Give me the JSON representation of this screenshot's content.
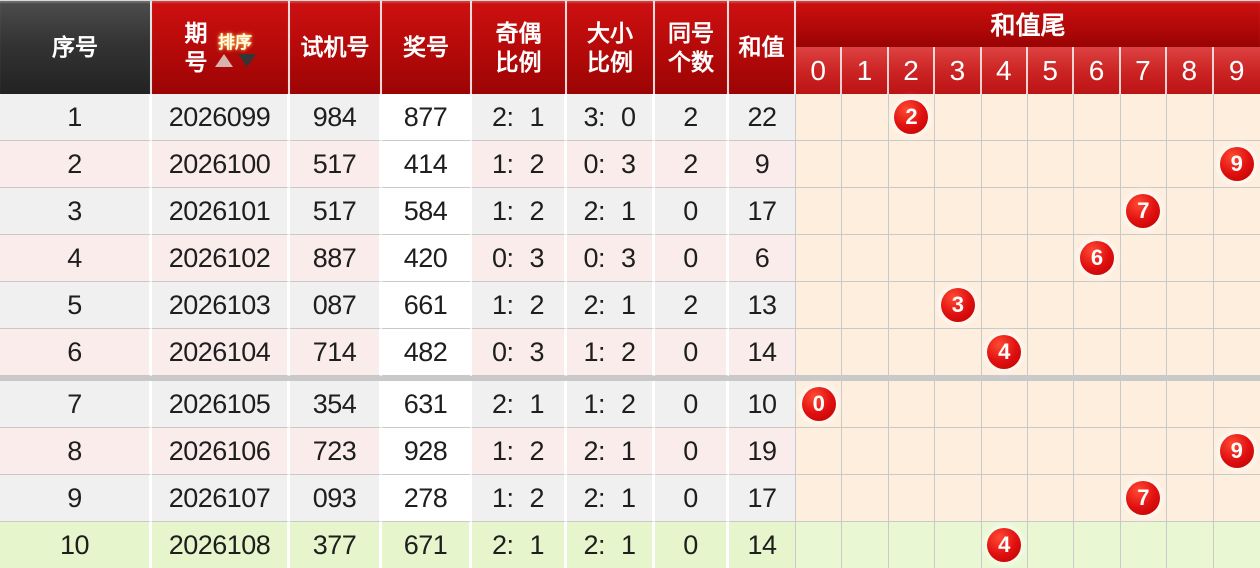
{
  "header": {
    "serial": "序号",
    "period_lines": [
      "期",
      "号"
    ],
    "sort_label": "排序",
    "test_number": "试机号",
    "prize_number": "奖号",
    "odd_even_lines": [
      "奇偶",
      "比例"
    ],
    "big_small_lines": [
      "大小",
      "比例"
    ],
    "same_count_lines": [
      "同号",
      "个数"
    ],
    "sum": "和值",
    "sum_tail": "和值尾",
    "tail_digits": [
      "0",
      "1",
      "2",
      "3",
      "4",
      "5",
      "6",
      "7",
      "8",
      "9"
    ]
  },
  "group_divider_after": 6,
  "rows": [
    {
      "index": "1",
      "period": "2026099",
      "test": "984",
      "prize": "877",
      "odd_even": "2: 1",
      "big_small": "3: 0",
      "same_count": "2",
      "sum": "22",
      "tail": 2
    },
    {
      "index": "2",
      "period": "2026100",
      "test": "517",
      "prize": "414",
      "odd_even": "1: 2",
      "big_small": "0: 3",
      "same_count": "2",
      "sum": "9",
      "tail": 9
    },
    {
      "index": "3",
      "period": "2026101",
      "test": "517",
      "prize": "584",
      "odd_even": "1: 2",
      "big_small": "2: 1",
      "same_count": "0",
      "sum": "17",
      "tail": 7
    },
    {
      "index": "4",
      "period": "2026102",
      "test": "887",
      "prize": "420",
      "odd_even": "0: 3",
      "big_small": "0: 3",
      "same_count": "0",
      "sum": "6",
      "tail": 6
    },
    {
      "index": "5",
      "period": "2026103",
      "test": "087",
      "prize": "661",
      "odd_even": "1: 2",
      "big_small": "2: 1",
      "same_count": "2",
      "sum": "13",
      "tail": 3
    },
    {
      "index": "6",
      "period": "2026104",
      "test": "714",
      "prize": "482",
      "odd_even": "0: 3",
      "big_small": "1: 2",
      "same_count": "0",
      "sum": "14",
      "tail": 4
    },
    {
      "index": "7",
      "period": "2026105",
      "test": "354",
      "prize": "631",
      "odd_even": "2: 1",
      "big_small": "1: 2",
      "same_count": "0",
      "sum": "10",
      "tail": 0
    },
    {
      "index": "8",
      "period": "2026106",
      "test": "723",
      "prize": "928",
      "odd_even": "1: 2",
      "big_small": "2: 1",
      "same_count": "0",
      "sum": "19",
      "tail": 9
    },
    {
      "index": "9",
      "period": "2026107",
      "test": "093",
      "prize": "278",
      "odd_even": "1: 2",
      "big_small": "2: 1",
      "same_count": "0",
      "sum": "17",
      "tail": 7
    },
    {
      "index": "10",
      "period": "2026108",
      "test": "377",
      "prize": "671",
      "odd_even": "2: 1",
      "big_small": "2: 1",
      "same_count": "0",
      "sum": "14",
      "tail": 4
    }
  ],
  "colors": {
    "header_red": "#b40909",
    "subheader_red": "#cb2222",
    "dark_header": "#343434",
    "ball_red": "#e01010",
    "row_gray": "#f0f0f0",
    "row_pink": "#fbecec",
    "row_green": "#e6f5cb",
    "tail_cream": "#fdeedd",
    "tail_green": "#e9f7d2",
    "grid_line": "#c9c9c9"
  }
}
